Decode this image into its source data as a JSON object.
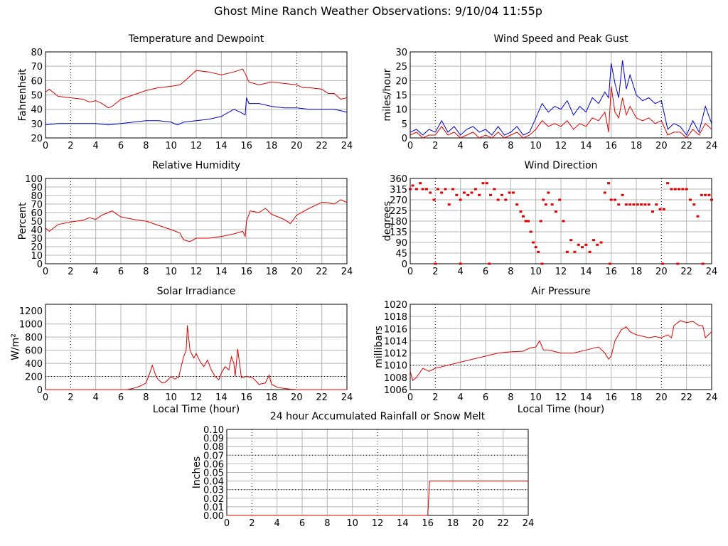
{
  "page_title": "Ghost Mine Ranch Weather Observations: 9/10/04 11:55p",
  "colors": {
    "red": "#e00000",
    "blue": "#0000cc",
    "grid": "#b4b4b4",
    "axis": "#000000"
  },
  "chart_data": [
    {
      "id": "temperature",
      "type": "line",
      "title": "Temperature and Dewpoint",
      "ylabel": "Fahrenheit",
      "xlabel": "",
      "xlim": [
        0,
        24
      ],
      "ylim": [
        20,
        80
      ],
      "xticks": [
        0,
        2,
        4,
        6,
        8,
        10,
        12,
        14,
        16,
        18,
        20,
        22,
        24
      ],
      "yticks": [
        20,
        30,
        40,
        50,
        60,
        70,
        80
      ],
      "series": [
        {
          "color": "#e00000",
          "x": [
            0,
            0.3,
            1,
            2,
            3,
            3.5,
            4,
            4.5,
            5,
            5.3,
            6,
            7,
            8,
            9,
            10,
            10.7,
            11,
            11.5,
            12,
            13,
            14,
            15,
            15.7,
            16,
            16.2,
            17,
            18,
            19,
            20,
            20.5,
            21,
            22,
            22.5,
            23,
            23.5,
            24
          ],
          "y": [
            52,
            54,
            49,
            48,
            47,
            45,
            46,
            44,
            41,
            42,
            47,
            50,
            53,
            55,
            56,
            57,
            59,
            63,
            67,
            66,
            64,
            66,
            68,
            63,
            59,
            57,
            59,
            58,
            57,
            55,
            55,
            54,
            51,
            51,
            47,
            48
          ]
        },
        {
          "color": "#0000cc",
          "x": [
            0,
            1,
            2,
            3,
            4,
            5,
            6,
            7,
            8,
            9,
            10,
            10.5,
            11,
            12,
            13,
            14,
            15,
            15.5,
            15.9,
            16,
            16.2,
            17,
            18,
            19,
            20,
            21,
            22,
            23,
            24
          ],
          "y": [
            29,
            30,
            30,
            30,
            30,
            29,
            30,
            31,
            32,
            32,
            31,
            29,
            31,
            32,
            33,
            35,
            40,
            38,
            36,
            48,
            44,
            44,
            42,
            41,
            41,
            40,
            40,
            40,
            38
          ]
        }
      ]
    },
    {
      "id": "wind-speed",
      "type": "line",
      "title": "Wind Speed and Peak Gust",
      "ylabel": "miles/hour",
      "xlabel": "",
      "xlim": [
        0,
        24
      ],
      "ylim": [
        0,
        30
      ],
      "xticks": [
        0,
        2,
        4,
        6,
        8,
        10,
        12,
        14,
        16,
        18,
        20,
        22,
        24
      ],
      "yticks": [
        0,
        5,
        10,
        15,
        20,
        25,
        30
      ],
      "series": [
        {
          "color": "#0000cc",
          "x": [
            0,
            0.5,
            1,
            1.5,
            2,
            2.5,
            3,
            3.5,
            4,
            4.5,
            5,
            5.5,
            6,
            6.5,
            7,
            7.5,
            8,
            8.5,
            9,
            9.5,
            10,
            10.5,
            11,
            11.5,
            12,
            12.5,
            13,
            13.5,
            14,
            14.5,
            15,
            15.5,
            15.8,
            16,
            16.3,
            16.6,
            16.9,
            17.2,
            17.5,
            18,
            18.5,
            19,
            19.5,
            20,
            20.5,
            21,
            21.5,
            22,
            22.5,
            23,
            23.5,
            24
          ],
          "y": [
            2,
            3,
            1,
            3,
            2,
            6,
            2,
            4,
            1,
            3,
            4,
            2,
            3,
            1,
            4,
            1,
            2,
            4,
            1,
            2,
            7,
            12,
            9,
            11,
            10,
            13,
            8,
            11,
            9,
            14,
            12,
            16,
            14,
            26,
            19,
            14,
            27,
            17,
            22,
            15,
            13,
            14,
            12,
            13,
            3,
            5,
            4,
            1,
            6,
            2,
            11,
            5
          ]
        },
        {
          "color": "#e00000",
          "x": [
            0,
            0.5,
            1,
            1.5,
            2,
            2.5,
            3,
            3.5,
            4,
            4.5,
            5,
            5.5,
            6,
            6.5,
            7,
            7.5,
            8,
            8.5,
            9,
            9.5,
            10,
            10.5,
            11,
            11.5,
            12,
            12.5,
            13,
            13.5,
            14,
            14.5,
            15,
            15.5,
            15.8,
            16,
            16.3,
            16.6,
            16.9,
            17.2,
            17.5,
            18,
            18.5,
            19,
            19.5,
            20,
            20.5,
            21,
            21.5,
            22,
            22.5,
            23,
            23.5,
            24
          ],
          "y": [
            1,
            2,
            0,
            1,
            1,
            4,
            1,
            2,
            0,
            1,
            2,
            0,
            1,
            0,
            2,
            0,
            1,
            2,
            0,
            1,
            3,
            6,
            4,
            5,
            4,
            6,
            3,
            5,
            4,
            7,
            6,
            9,
            2,
            18,
            9,
            7,
            14,
            8,
            11,
            7,
            6,
            7,
            5,
            6,
            1,
            2,
            2,
            0,
            3,
            1,
            5,
            3
          ]
        }
      ]
    },
    {
      "id": "humidity",
      "type": "line",
      "title": "Relative Humidity",
      "ylabel": "Percent",
      "xlabel": "",
      "xlim": [
        0,
        24
      ],
      "ylim": [
        0,
        100
      ],
      "xticks": [
        0,
        2,
        4,
        6,
        8,
        10,
        12,
        14,
        16,
        18,
        20,
        22,
        24
      ],
      "yticks": [
        0,
        10,
        20,
        30,
        40,
        50,
        60,
        70,
        80,
        90,
        100
      ],
      "series": [
        {
          "color": "#e00000",
          "x": [
            0,
            0.3,
            1,
            2,
            3,
            3.5,
            4,
            4.5,
            5,
            5.3,
            6,
            7,
            8,
            9,
            10,
            10.7,
            11,
            11.5,
            12,
            13,
            14,
            15,
            15.7,
            15.9,
            16,
            16.3,
            17,
            17.5,
            18,
            19,
            19.5,
            20,
            21,
            22,
            22.3,
            23,
            23.5,
            24
          ],
          "y": [
            42,
            38,
            46,
            49,
            51,
            54,
            52,
            57,
            60,
            62,
            55,
            52,
            50,
            45,
            40,
            36,
            28,
            26,
            30,
            30,
            32,
            35,
            38,
            32,
            50,
            62,
            60,
            65,
            58,
            52,
            47,
            57,
            65,
            72,
            72,
            70,
            75,
            72
          ]
        }
      ]
    },
    {
      "id": "wind-direction",
      "type": "scatter",
      "title": "Wind Direction",
      "ylabel": "degrees",
      "xlabel": "",
      "xlim": [
        0,
        24
      ],
      "ylim": [
        0,
        360
      ],
      "xticks": [
        0,
        2,
        4,
        6,
        8,
        10,
        12,
        14,
        16,
        18,
        20,
        22,
        24
      ],
      "yticks": [
        0,
        45,
        90,
        135,
        180,
        225,
        270,
        315,
        360
      ],
      "series": [
        {
          "color": "#e00000",
          "x": [
            0,
            0.2,
            0.5,
            0.8,
            1,
            1.3,
            1.6,
            1.9,
            2.2,
            2.5,
            2.8,
            3.1,
            3.4,
            3.7,
            4,
            4.3,
            4.6,
            4.9,
            5.2,
            5.5,
            5.8,
            6.1,
            6.4,
            6.7,
            7,
            7.3,
            7.6,
            7.9,
            8.2,
            8.5,
            8.8,
            9,
            9.2,
            9.4,
            9.6,
            9.8,
            10,
            10.2,
            10.4,
            10.6,
            10.8,
            11,
            11.3,
            11.6,
            11.9,
            12.2,
            12.5,
            12.8,
            13.1,
            13.4,
            13.7,
            14,
            14.3,
            14.6,
            14.9,
            15.2,
            15.5,
            15.8,
            16,
            16.3,
            16.6,
            16.9,
            17.2,
            17.5,
            17.8,
            18.1,
            18.4,
            18.7,
            19,
            19.3,
            19.6,
            19.9,
            20.2,
            20.5,
            20.8,
            21.1,
            21.4,
            21.7,
            22,
            22.3,
            22.6,
            22.9,
            23.2,
            23.5,
            23.8,
            24,
            2,
            4,
            6.3,
            10.5,
            15.9,
            20.1,
            21.3,
            23.3
          ],
          "y": [
            315,
            330,
            315,
            340,
            315,
            315,
            300,
            270,
            315,
            300,
            315,
            250,
            315,
            290,
            270,
            300,
            290,
            300,
            315,
            290,
            340,
            340,
            290,
            315,
            270,
            290,
            270,
            300,
            300,
            250,
            220,
            200,
            180,
            180,
            135,
            90,
            70,
            50,
            180,
            270,
            250,
            300,
            250,
            220,
            270,
            180,
            50,
            100,
            50,
            80,
            70,
            80,
            50,
            100,
            80,
            90,
            300,
            340,
            270,
            270,
            250,
            290,
            250,
            250,
            250,
            250,
            250,
            250,
            250,
            220,
            250,
            230,
            230,
            340,
            315,
            315,
            315,
            315,
            315,
            270,
            250,
            200,
            290,
            290,
            290,
            270,
            0,
            0,
            0,
            0,
            0,
            0,
            0,
            0
          ]
        }
      ]
    },
    {
      "id": "solar",
      "type": "line",
      "title": "Solar Irradiance",
      "ylabel": "W/m²",
      "xlabel": "Local Time (hour)",
      "xlim": [
        0,
        24
      ],
      "ylim": [
        0,
        1300
      ],
      "xticks": [
        0,
        2,
        4,
        6,
        8,
        10,
        12,
        14,
        16,
        18,
        20,
        22,
        24
      ],
      "yticks": [
        0,
        200,
        400,
        600,
        800,
        1000,
        1200
      ],
      "series": [
        {
          "color": "#e00000",
          "x": [
            0,
            6.5,
            7,
            7.5,
            8,
            8.3,
            8.5,
            8.8,
            9,
            9.3,
            9.6,
            10,
            10.3,
            10.6,
            11,
            11.2,
            11.3,
            11.5,
            11.8,
            12,
            12.3,
            12.6,
            12.9,
            13.2,
            13.5,
            13.8,
            14,
            14.3,
            14.6,
            14.8,
            15,
            15.1,
            15.3,
            15.6,
            16,
            16.5,
            17,
            17.5,
            17.8,
            18,
            18.5,
            19,
            19.5,
            20,
            24
          ],
          "y": [
            0,
            0,
            20,
            50,
            100,
            250,
            370,
            200,
            150,
            100,
            120,
            200,
            160,
            190,
            500,
            600,
            980,
            600,
            480,
            550,
            430,
            350,
            450,
            300,
            200,
            150,
            250,
            350,
            300,
            500,
            400,
            200,
            620,
            180,
            200,
            180,
            80,
            100,
            220,
            80,
            30,
            20,
            5,
            0,
            0
          ]
        }
      ]
    },
    {
      "id": "pressure",
      "type": "line",
      "title": "Air Pressure",
      "ylabel": "millibars",
      "xlabel": "Local Time (hour)",
      "xlim": [
        0,
        24
      ],
      "ylim": [
        1006,
        1020
      ],
      "xticks": [
        0,
        2,
        4,
        6,
        8,
        10,
        12,
        14,
        16,
        18,
        20,
        22,
        24
      ],
      "yticks": [
        1006,
        1008,
        1010,
        1012,
        1014,
        1016,
        1018,
        1020
      ],
      "series": [
        {
          "color": "#e00000",
          "x": [
            0,
            0.2,
            0.5,
            1,
            1.5,
            2,
            3,
            4,
            5,
            6,
            7,
            8,
            9,
            9.5,
            10,
            10.3,
            10.6,
            11,
            12,
            13,
            14,
            15,
            15.5,
            15.8,
            16,
            16.3,
            16.8,
            17.2,
            17.5,
            18,
            19,
            19.5,
            20,
            20.5,
            20.8,
            21,
            21.5,
            22,
            22.5,
            23,
            23.3,
            23.5,
            24
          ],
          "y": [
            1009,
            1007.5,
            1008,
            1009.5,
            1009,
            1009.5,
            1010,
            1010.5,
            1011,
            1011.5,
            1012,
            1012.2,
            1012.3,
            1012.8,
            1013,
            1014,
            1012.5,
            1012.5,
            1012,
            1012,
            1012.5,
            1013,
            1012,
            1011,
            1011.5,
            1014,
            1015.8,
            1016.3,
            1015.5,
            1015,
            1014.5,
            1014.7,
            1014.5,
            1015,
            1014.5,
            1016.5,
            1017.3,
            1017,
            1017.2,
            1016.5,
            1016.5,
            1014.5,
            1015.5
          ]
        }
      ]
    },
    {
      "id": "rainfall",
      "type": "line",
      "title": "24 hour Accumulated Rainfall or Snow Melt",
      "ylabel": "Inches",
      "xlabel": "",
      "xlim": [
        0,
        24
      ],
      "ylim": [
        0,
        0.1
      ],
      "xticks": [
        0,
        2,
        4,
        6,
        8,
        10,
        12,
        14,
        16,
        18,
        20,
        22,
        24
      ],
      "yticks": [
        0.0,
        0.01,
        0.02,
        0.03,
        0.04,
        0.05,
        0.06,
        0.07,
        0.08,
        0.09,
        0.1
      ],
      "series": [
        {
          "color": "#e00000",
          "x": [
            0,
            16.0,
            16.15,
            24
          ],
          "y": [
            0,
            0,
            0.04,
            0.04
          ]
        }
      ]
    }
  ]
}
